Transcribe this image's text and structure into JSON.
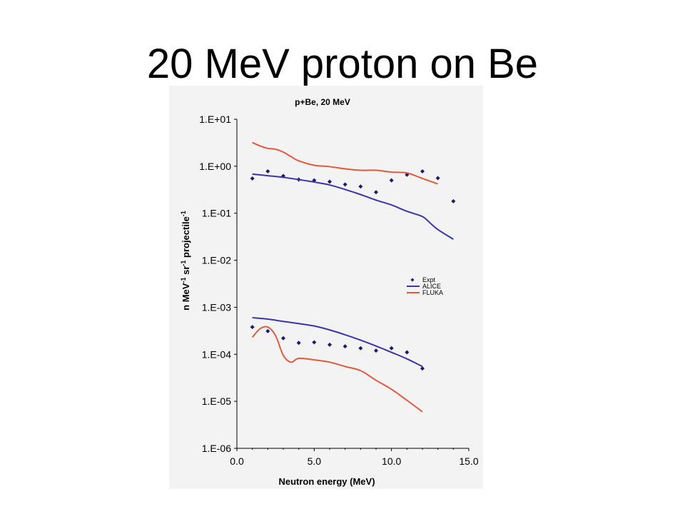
{
  "slide": {
    "title": "20 MeV proton on Be"
  },
  "colors": {
    "expt": "#1a1a6e",
    "alice": "#3b35a8",
    "fluka": "#e05a3c",
    "panel_bg": "#f3f3f3"
  },
  "chart_data": {
    "type": "scatter",
    "title": "p+Be, 20 MeV",
    "xlabel": "Neutron energy (MeV)",
    "ylabel_parts": [
      "n MeV",
      "-1",
      " sr",
      "-1",
      " projectile",
      "-1"
    ],
    "xlim": [
      0,
      15
    ],
    "ylim": [
      1e-06,
      10
    ],
    "y_scale": "log",
    "x_ticks": [
      "0.0",
      "5.0",
      "10.0",
      "15.0"
    ],
    "y_ticks": [
      {
        "value": 10,
        "label": "1.E+01"
      },
      {
        "value": 1,
        "label": "1.E+00"
      },
      {
        "value": 0.1,
        "label": "1.E-01"
      },
      {
        "value": 0.01,
        "label": "1.E-02"
      },
      {
        "value": 0.001,
        "label": "1.E-03"
      },
      {
        "value": 0.0001,
        "label": "1.E-04"
      },
      {
        "value": 1e-05,
        "label": "1.E-05"
      },
      {
        "value": 1e-06,
        "label": "1.E-06"
      }
    ],
    "legend": {
      "position": "right-middle",
      "entries": [
        "Expt",
        "ALICE",
        "FLUKA"
      ]
    },
    "series": [
      {
        "name": "Expt",
        "kind": "points",
        "color": "#1a1a6e",
        "x": [
          1,
          2,
          3,
          4,
          5,
          6,
          7,
          8,
          9,
          10,
          11,
          12,
          13,
          14
        ],
        "y": [
          0.55,
          0.78,
          0.62,
          0.52,
          0.5,
          0.47,
          0.41,
          0.37,
          0.28,
          0.5,
          0.66,
          0.78,
          0.56,
          0.18
        ]
      },
      {
        "name": "ALICE",
        "kind": "line",
        "color": "#3b35a8",
        "x": [
          1,
          2,
          3,
          4,
          5,
          6,
          7,
          8,
          9,
          10,
          11,
          12,
          12.5,
          13,
          14
        ],
        "y": [
          0.68,
          0.63,
          0.58,
          0.52,
          0.46,
          0.4,
          0.32,
          0.25,
          0.19,
          0.15,
          0.11,
          0.085,
          0.062,
          0.045,
          0.028
        ]
      },
      {
        "name": "FLUKA",
        "kind": "line",
        "color": "#e05a3c",
        "x": [
          1,
          1.5,
          2,
          2.5,
          3,
          3.5,
          4,
          5,
          6,
          7,
          8,
          9,
          10,
          11,
          12,
          13
        ],
        "y": [
          3.2,
          2.7,
          2.4,
          2.3,
          2.0,
          1.6,
          1.3,
          1.05,
          0.98,
          0.88,
          0.82,
          0.82,
          0.75,
          0.72,
          0.55,
          0.42
        ]
      },
      {
        "kind": "points",
        "color": "#1a1a6e",
        "x": [
          1,
          2,
          3,
          4,
          5,
          6,
          7,
          8,
          9,
          10,
          11,
          12
        ],
        "y": [
          0.00038,
          0.00031,
          0.00022,
          0.000175,
          0.00018,
          0.00016,
          0.000148,
          0.000135,
          0.00012,
          0.000135,
          0.00011,
          5e-05
        ]
      },
      {
        "kind": "line",
        "color": "#3b35a8",
        "x": [
          1,
          2,
          3,
          4,
          5,
          6,
          7,
          8,
          9,
          10,
          11,
          12
        ],
        "y": [
          0.0006,
          0.00056,
          0.0005,
          0.00045,
          0.0004,
          0.00033,
          0.00026,
          0.0002,
          0.00015,
          0.00011,
          8e-05,
          5.5e-05
        ]
      },
      {
        "kind": "line",
        "color": "#e05a3c",
        "x": [
          1,
          1.5,
          2,
          2.5,
          3,
          3.5,
          4,
          5,
          6,
          7,
          8,
          9,
          10,
          11,
          12
        ],
        "y": [
          0.00023,
          0.00035,
          0.00038,
          0.00025,
          9.5e-05,
          6.8e-05,
          8.2e-05,
          7.6e-05,
          6.8e-05,
          5.5e-05,
          4.5e-05,
          2.8e-05,
          1.8e-05,
          1.05e-05,
          6e-06
        ]
      }
    ]
  }
}
